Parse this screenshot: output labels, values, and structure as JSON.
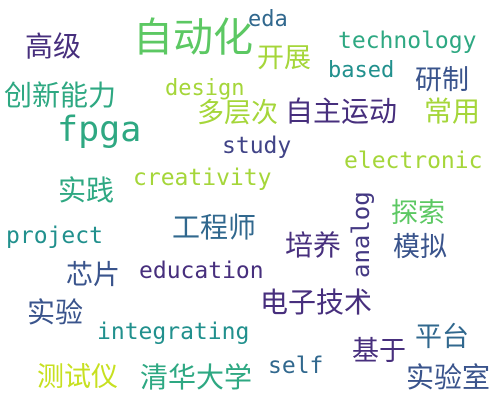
{
  "words": {
    "zidonghua": "自动化",
    "eda": "eda",
    "technology": "technology",
    "gaoji": "高级",
    "kaizhan": "开展",
    "based": "based",
    "chuangxin_nengli": "创新能力",
    "design": "design",
    "yanzhi": "研制",
    "fpga": "fpga",
    "duocengci": "多层次",
    "zizhu_yundong": "自主运动",
    "changyong": "常用",
    "study": "study",
    "electronic": "electronic",
    "shijian": "实践",
    "creativity": "creativity",
    "tansuo": "探索",
    "gongchengshi": "工程师",
    "project": "project",
    "analog": "analog",
    "peiyang": "培养",
    "moni": "模拟",
    "xinpian": "芯片",
    "education": "education",
    "dianzi_jishu": "电子技术",
    "shiyan": "实验",
    "integrating": "integrating",
    "pingtai": "平台",
    "jiyu": "基于",
    "ceshiyi": "测试仪",
    "qinghua_daxue": "清华大学",
    "self": "self",
    "shiyanshi": "实验室"
  },
  "colors": {
    "background": "#ffffff",
    "green": "#5cc863",
    "lime": "#a5d63a",
    "yellow_green": "#c7e020",
    "teal": "#21908d",
    "teal_light": "#2ea882",
    "blue": "#3a548c",
    "blue_dark": "#31688e",
    "purple_dark": "#472f7d",
    "purple": "#443983",
    "indigo": "#414487"
  }
}
